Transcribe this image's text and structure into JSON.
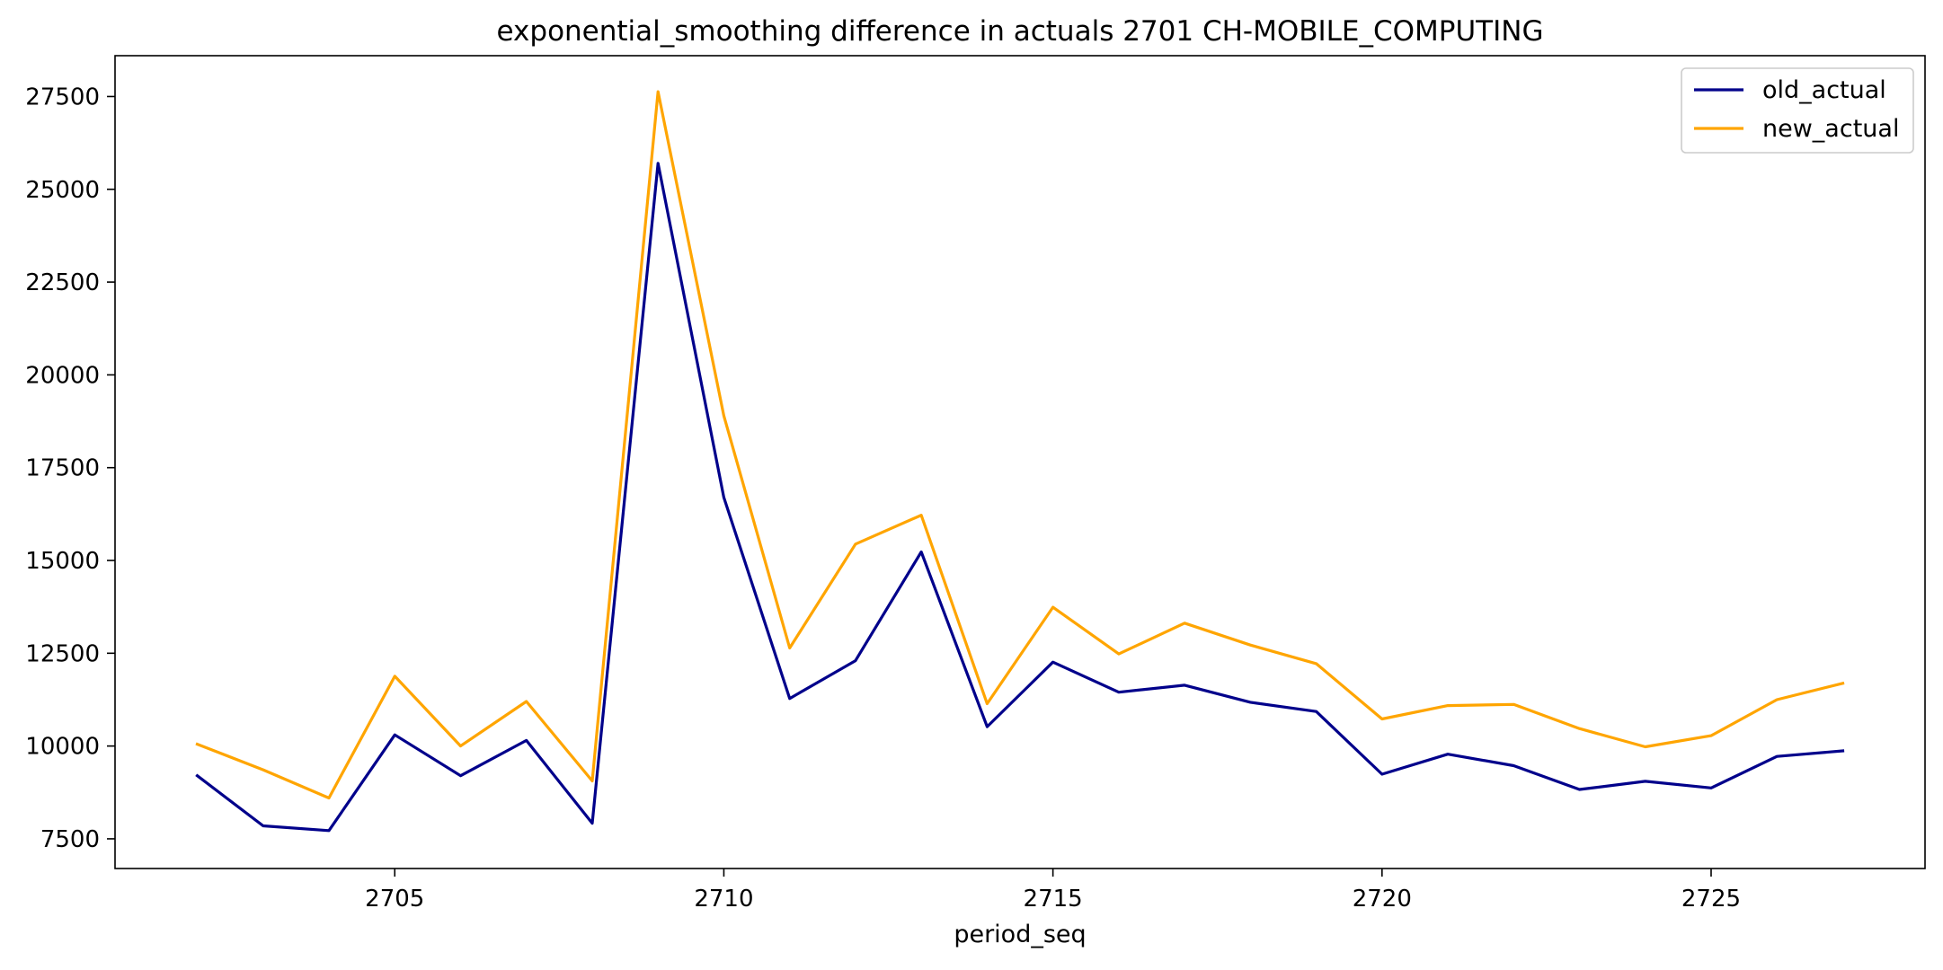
{
  "chart_data": {
    "type": "line",
    "title": "exponential_smoothing difference in actuals 2701 CH-MOBILE_COMPUTING",
    "xlabel": "period_seq",
    "ylabel": "",
    "x": [
      2702,
      2703,
      2704,
      2705,
      2706,
      2707,
      2708,
      2709,
      2710,
      2711,
      2712,
      2713,
      2714,
      2715,
      2716,
      2717,
      2718,
      2719,
      2720,
      2721,
      2722,
      2723,
      2724,
      2725,
      2726,
      2727
    ],
    "xlim": [
      2700.75,
      2728.25
    ],
    "ylim": [
      6700,
      28600
    ],
    "xticks": [
      2705,
      2710,
      2715,
      2720,
      2725
    ],
    "yticks": [
      7500,
      10000,
      12500,
      15000,
      17500,
      20000,
      22500,
      25000,
      27500
    ],
    "grid": false,
    "legend_position": "top-right",
    "series": [
      {
        "name": "old_actual",
        "color": "#00008b",
        "values": [
          9200,
          7850,
          7720,
          10300,
          9200,
          10150,
          7920,
          25700,
          16700,
          11280,
          12300,
          15230,
          10520,
          12260,
          11450,
          11640,
          11180,
          10930,
          9240,
          9780,
          9470,
          8830,
          9050,
          8870,
          9720,
          9870
        ]
      },
      {
        "name": "new_actual",
        "color": "#ffa500",
        "values": [
          10050,
          9360,
          8600,
          11880,
          10000,
          11200,
          9060,
          27630,
          18900,
          12640,
          15440,
          16220,
          11140,
          13740,
          12480,
          13310,
          12720,
          12220,
          10730,
          11090,
          11120,
          10470,
          9980,
          10280,
          11250,
          11690
        ]
      }
    ]
  }
}
